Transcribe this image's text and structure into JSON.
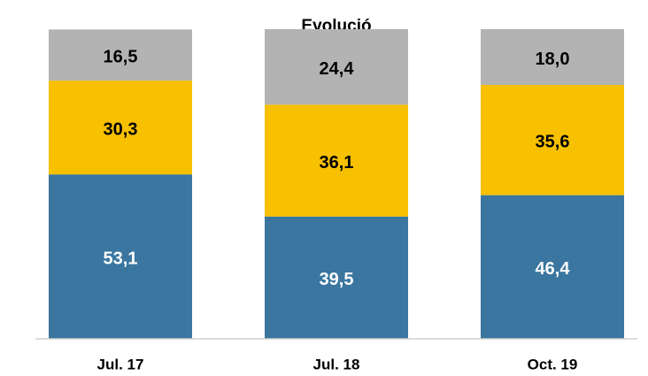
{
  "chart_data": {
    "type": "stacked_bar",
    "title": "Evolució",
    "categories": [
      "Jul. 17",
      "Jul. 18",
      "Oct. 19"
    ],
    "series": [
      {
        "color": "#3a76a0",
        "values": [
          53.1,
          39.5,
          46.4
        ],
        "value_labels": [
          "53,1",
          "39,5",
          "46,4"
        ]
      },
      {
        "color": "#f7c000",
        "values": [
          30.3,
          36.1,
          35.6
        ],
        "value_labels": [
          "30,3",
          "36,1",
          "35,6"
        ]
      },
      {
        "color": "#b3b3b3",
        "values": [
          16.5,
          24.4,
          18.0
        ],
        "value_labels": [
          "16,5",
          "24,4",
          "18,0"
        ]
      }
    ],
    "ylim": [
      0,
      100
    ]
  }
}
